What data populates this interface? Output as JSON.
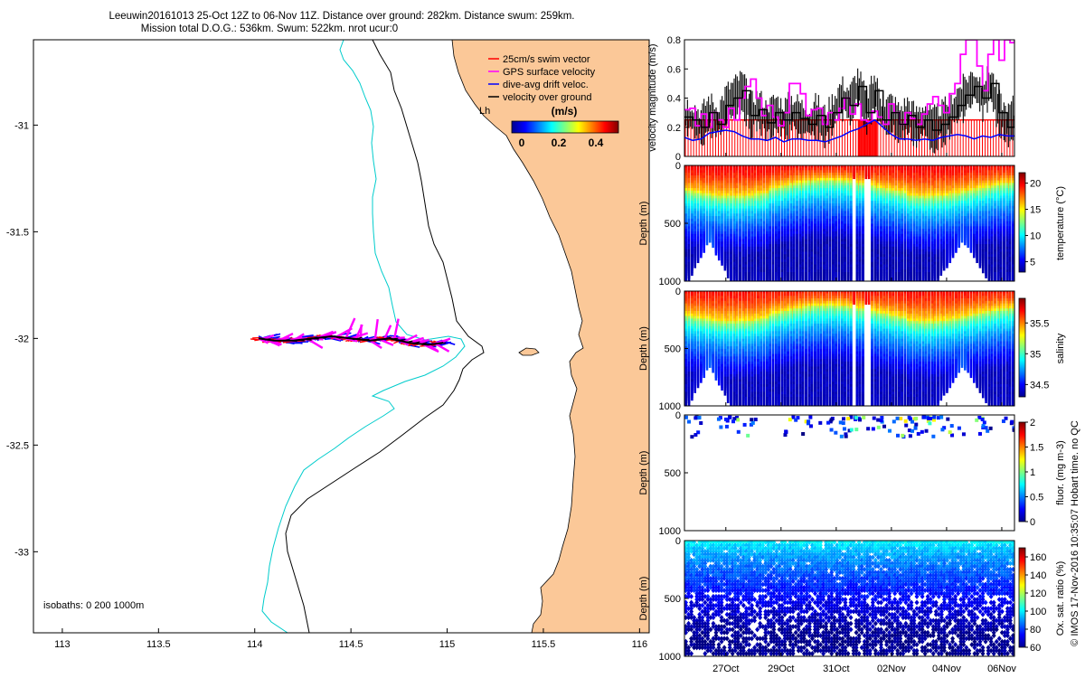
{
  "header": {
    "line1": "Leeuwin20161013 25-Oct 12Z to 06-Nov 11Z. Distance over ground: 282km. Distance swum: 259km.",
    "line2": "Mission total D.O.G.: 536km. Swum: 522km. nrot ucur:0"
  },
  "footer": {
    "credit": "© IMOS 17-Nov-2016 10:35:07 Hobart time. no QC"
  },
  "colors": {
    "land": "#fbc898",
    "ocean": "#ffffff",
    "isobath_200": "#00cccc",
    "isobath_1000": "#000000",
    "swim_vector": "#ff0000",
    "gps_velocity": "#ff00ff",
    "drift_velocity": "#0000ff",
    "ground_velocity": "#000000"
  },
  "chart_data": [
    {
      "id": "map",
      "type": "scatter",
      "title": "",
      "xlim": [
        112.85,
        116.05
      ],
      "ylim": [
        -33.38,
        -30.6
      ],
      "xticks": [
        "113",
        "113.5",
        "114",
        "114.5",
        "115",
        "115.5",
        "116"
      ],
      "yticks": [
        "-31",
        "-31.5",
        "-32",
        "-32.5",
        "-33"
      ],
      "legend_position": "top-right",
      "legend": [
        {
          "label": "25cm/s swim vector",
          "color": "#ff0000"
        },
        {
          "label": "GPS surface velocity",
          "color": "#ff00ff"
        },
        {
          "label": "dive-avg drift veloc.",
          "color": "#0000ff"
        },
        {
          "label": "velocity over ground",
          "color": "#000000"
        }
      ],
      "colorbar": {
        "title": "(m/s)",
        "ticks": [
          "0",
          "0.2",
          "0.4"
        ],
        "range": [
          0,
          0.5
        ]
      },
      "isobaths_note": "isobaths: 0   200  1000m",
      "track": {
        "lon": [
          114.02,
          114.1,
          114.2,
          114.3,
          114.4,
          114.5,
          114.6,
          114.7,
          114.8,
          114.9,
          114.98
        ],
        "lat": [
          -32.0,
          -32.01,
          -32.01,
          -32.0,
          -31.99,
          -32.0,
          -32.01,
          -32.0,
          -32.02,
          -32.03,
          -32.02
        ]
      },
      "town_label": "Lh"
    },
    {
      "id": "velocity",
      "type": "line",
      "ylabel": "velocity magnitude (m/s)",
      "ylim": [
        0,
        0.8
      ],
      "yticks": [
        "0",
        "0.2",
        "0.4",
        "0.6",
        "0.8"
      ],
      "series": [
        {
          "name": "GPS surface velocity",
          "color": "#ff00ff",
          "x": [
            0.0,
            0.2,
            0.4,
            0.6,
            0.8,
            1.0,
            1.2,
            1.4,
            1.6,
            1.8,
            2.0,
            2.2,
            2.4,
            2.6,
            2.8,
            3.0,
            3.2,
            3.4,
            3.6,
            3.8,
            4.0,
            4.2,
            4.4,
            4.6,
            4.8,
            5.0,
            5.2,
            5.4,
            5.6,
            5.8,
            6.0,
            6.2,
            6.4,
            6.6,
            6.8,
            7.0,
            7.2,
            7.4,
            7.6,
            7.8,
            8.0,
            8.2,
            8.4,
            8.6,
            8.8,
            9.0,
            9.2,
            9.4,
            9.6,
            9.8,
            10.0,
            10.2,
            10.4,
            10.6,
            10.8,
            11.0,
            11.2,
            11.4,
            11.6,
            11.8,
            11.96
          ],
          "y": [
            0.32,
            0.33,
            0.21,
            0.29,
            0.2,
            0.3,
            0.25,
            0.2,
            0.33,
            0.25,
            0.4,
            0.48,
            0.53,
            0.4,
            0.28,
            0.35,
            0.27,
            0.21,
            0.3,
            0.5,
            0.5,
            0.43,
            0.28,
            0.32,
            0.33,
            0.22,
            0.3,
            0.25,
            0.33,
            0.4,
            0.29,
            0.36,
            0.25,
            0.24,
            0.31,
            0.27,
            0.22,
            0.36,
            0.3,
            0.22,
            0.3,
            0.26,
            0.22,
            0.29,
            0.36,
            0.41,
            0.35,
            0.3,
            0.43,
            0.5,
            0.7,
            0.8,
            0.8,
            0.62,
            0.45,
            0.7,
            0.8,
            0.66,
            0.8,
            0.78,
            0.8
          ]
        },
        {
          "name": "velocity over ground",
          "color": "#000000",
          "x": [
            0.0,
            0.3,
            0.6,
            0.9,
            1.2,
            1.5,
            1.8,
            2.1,
            2.4,
            2.7,
            3.0,
            3.3,
            3.6,
            3.9,
            4.2,
            4.5,
            4.8,
            5.1,
            5.4,
            5.7,
            6.0,
            6.3,
            6.6,
            6.9,
            7.2,
            7.5,
            7.8,
            8.1,
            8.4,
            8.7,
            9.0,
            9.3,
            9.6,
            9.9,
            10.2,
            10.5,
            10.8,
            11.1,
            11.4,
            11.7,
            11.96
          ],
          "y": [
            0.27,
            0.25,
            0.2,
            0.3,
            0.22,
            0.35,
            0.4,
            0.45,
            0.28,
            0.32,
            0.23,
            0.3,
            0.25,
            0.3,
            0.26,
            0.22,
            0.28,
            0.2,
            0.3,
            0.4,
            0.35,
            0.48,
            0.3,
            0.45,
            0.25,
            0.3,
            0.22,
            0.28,
            0.2,
            0.25,
            0.18,
            0.22,
            0.27,
            0.35,
            0.42,
            0.48,
            0.4,
            0.5,
            0.3,
            0.2,
            0.28
          ]
        },
        {
          "name": "dive-avg drift veloc.",
          "color": "#0000ff",
          "x": [
            0.0,
            0.3,
            0.6,
            0.9,
            1.2,
            1.5,
            1.8,
            2.1,
            2.4,
            2.7,
            3.0,
            3.3,
            3.6,
            3.9,
            4.2,
            4.5,
            4.8,
            5.1,
            5.4,
            5.7,
            6.0,
            6.3,
            6.6,
            6.9,
            7.2,
            7.5,
            7.8,
            8.1,
            8.4,
            8.7,
            9.0,
            9.3,
            9.6,
            9.9,
            10.2,
            10.5,
            10.8,
            11.1,
            11.4,
            11.7,
            11.96
          ],
          "y": [
            0.13,
            0.11,
            0.12,
            0.16,
            0.17,
            0.18,
            0.17,
            0.14,
            0.12,
            0.12,
            0.11,
            0.13,
            0.1,
            0.12,
            0.12,
            0.11,
            0.11,
            0.1,
            0.12,
            0.14,
            0.17,
            0.19,
            0.22,
            0.25,
            0.2,
            0.15,
            0.12,
            0.12,
            0.11,
            0.12,
            0.11,
            0.13,
            0.14,
            0.15,
            0.14,
            0.12,
            0.14,
            0.13,
            0.15,
            0.14,
            0.14
          ]
        },
        {
          "name": "25cm/s swim vector",
          "color": "#ff0000",
          "x": [
            0.0,
            11.96
          ],
          "y": [
            0.25,
            0.25
          ]
        }
      ]
    },
    {
      "id": "temperature",
      "type": "heatmap",
      "ylabel": "Depth (m)",
      "ylim": [
        1000,
        0
      ],
      "yticks": [
        "0",
        "500",
        "1000"
      ],
      "colorbar": {
        "label": "temperature (°C)",
        "range": [
          3,
          22
        ],
        "ticks": [
          "5",
          "10",
          "15",
          "20"
        ]
      },
      "surface": 20,
      "deep": 4
    },
    {
      "id": "salinity",
      "type": "heatmap",
      "ylabel": "Depth (m)",
      "ylim": [
        1000,
        0
      ],
      "yticks": [
        "0",
        "500",
        "1000"
      ],
      "colorbar": {
        "label": "salinity",
        "range": [
          34.3,
          35.9
        ],
        "ticks": [
          "34.5",
          "35",
          "35.5"
        ]
      },
      "surface": 35.7,
      "deep": 34.4
    },
    {
      "id": "fluorescence",
      "type": "heatmap",
      "ylabel": "Depth (m)",
      "ylim": [
        1000,
        0
      ],
      "yticks": [
        "0",
        "500",
        "1000"
      ],
      "colorbar": {
        "label": "fluor. (mg m-3)",
        "range": [
          0,
          2
        ],
        "ticks": [
          "0",
          "0.5",
          "1",
          "1.5",
          "2"
        ]
      }
    },
    {
      "id": "oxygen",
      "type": "heatmap",
      "ylabel": "Depth (m)",
      "ylim": [
        1000,
        0
      ],
      "yticks": [
        "0",
        "500",
        "1000"
      ],
      "colorbar": {
        "label": "Ox. sat. ratio (%)",
        "range": [
          60,
          170
        ],
        "ticks": [
          "60",
          "80",
          "100",
          "120",
          "140",
          "160"
        ]
      },
      "surface": 103,
      "deep": 62
    }
  ],
  "time_axis": {
    "ticks": [
      "27Oct",
      "29Oct",
      "31Oct",
      "02Nov",
      "04Nov",
      "06Nov"
    ],
    "tick_days": [
      1.5,
      3.5,
      5.5,
      7.5,
      9.5,
      11.5
    ],
    "days_span": 11.96
  }
}
